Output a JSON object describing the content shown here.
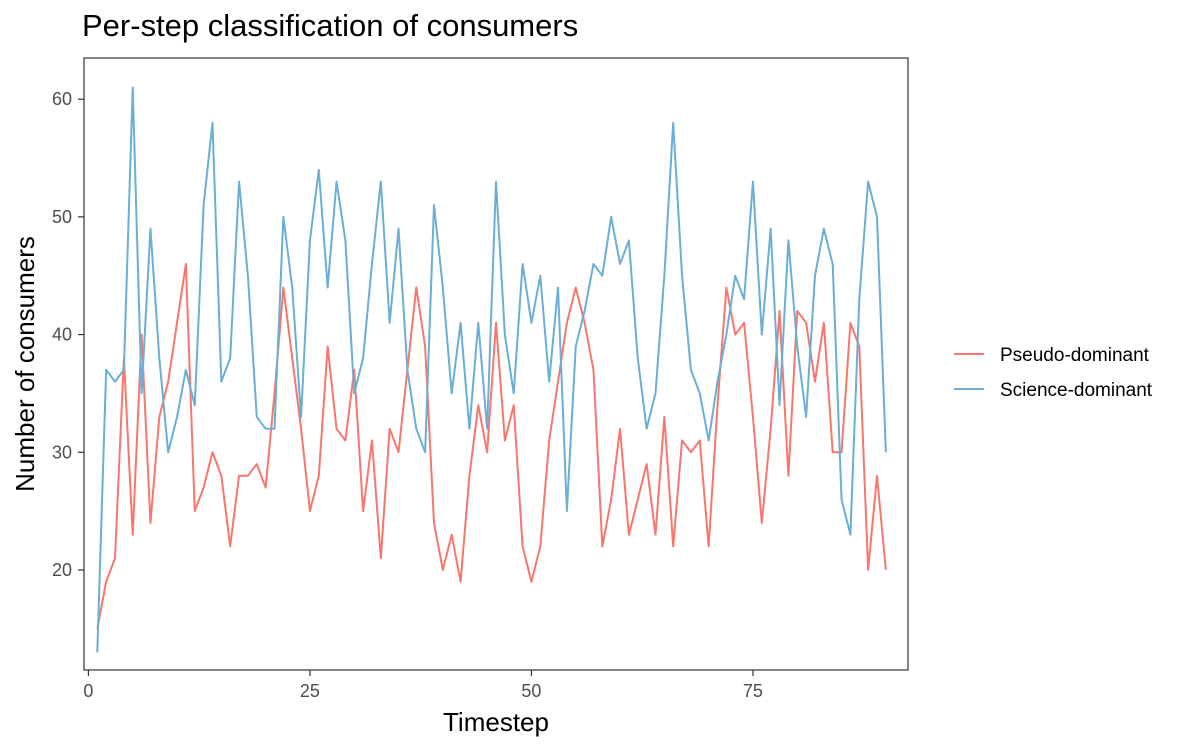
{
  "chart_data": {
    "type": "line",
    "title": "Per-step classification of consumers",
    "xlabel": "Timestep",
    "ylabel": "Number of consumers",
    "xlim": [
      -0.5,
      92.5
    ],
    "ylim": [
      11.5,
      63.5
    ],
    "xticks": [
      0,
      25,
      50,
      75
    ],
    "yticks": [
      20,
      30,
      40,
      50,
      60
    ],
    "xtick_labels": [
      "0",
      "25",
      "50",
      "75"
    ],
    "ytick_labels": [
      "20",
      "30",
      "40",
      "50",
      "60"
    ],
    "grid": false,
    "legend_position": "right",
    "x": [
      1,
      2,
      3,
      4,
      5,
      6,
      7,
      8,
      9,
      10,
      11,
      12,
      13,
      14,
      15,
      16,
      17,
      18,
      19,
      20,
      21,
      22,
      23,
      24,
      25,
      26,
      27,
      28,
      29,
      30,
      31,
      32,
      33,
      34,
      35,
      36,
      37,
      38,
      39,
      40,
      41,
      42,
      43,
      44,
      45,
      46,
      47,
      48,
      49,
      50,
      51,
      52,
      53,
      54,
      55,
      56,
      57,
      58,
      59,
      60,
      61,
      62,
      63,
      64,
      65,
      66,
      67,
      68,
      69,
      70,
      71,
      72,
      73,
      74,
      75,
      76,
      77,
      78,
      79,
      80,
      81,
      82,
      83,
      84,
      85,
      86,
      87,
      88,
      89,
      90
    ],
    "series": [
      {
        "name": "Pseudo-dominant",
        "color": "#F8766D",
        "values": [
          15,
          19,
          21,
          38,
          23,
          40,
          24,
          33,
          36,
          41,
          46,
          25,
          27,
          30,
          28,
          22,
          28,
          28,
          29,
          27,
          35,
          44,
          38,
          32,
          25,
          28,
          39,
          32,
          31,
          37,
          25,
          31,
          21,
          32,
          30,
          37,
          44,
          39,
          24,
          20,
          23,
          19,
          28,
          34,
          30,
          41,
          31,
          34,
          22,
          19,
          22,
          31,
          36,
          41,
          44,
          41,
          37,
          22,
          26,
          32,
          23,
          26,
          29,
          23,
          33,
          22,
          31,
          30,
          31,
          22,
          34,
          44,
          40,
          41,
          33,
          24,
          32,
          42,
          28,
          42,
          41,
          36,
          41,
          30,
          30,
          41,
          39,
          20,
          28,
          20
        ]
      },
      {
        "name": "Science-dominant",
        "color": "#6BAED6",
        "values": [
          13,
          37,
          36,
          37,
          61,
          35,
          49,
          38,
          30,
          33,
          37,
          34,
          51,
          58,
          36,
          38,
          53,
          45,
          33,
          32,
          32,
          50,
          44,
          33,
          48,
          54,
          44,
          53,
          48,
          35,
          38,
          46,
          53,
          41,
          49,
          37,
          32,
          30,
          51,
          44,
          35,
          41,
          32,
          41,
          32,
          53,
          40,
          35,
          46,
          41,
          45,
          36,
          44,
          25,
          39,
          42,
          46,
          45,
          50,
          46,
          48,
          38,
          32,
          35,
          45,
          58,
          45,
          37,
          35,
          31,
          36,
          40,
          45,
          43,
          53,
          40,
          49,
          34,
          48,
          39,
          33,
          45,
          49,
          46,
          26,
          23,
          43,
          53,
          50,
          30
        ]
      }
    ]
  }
}
